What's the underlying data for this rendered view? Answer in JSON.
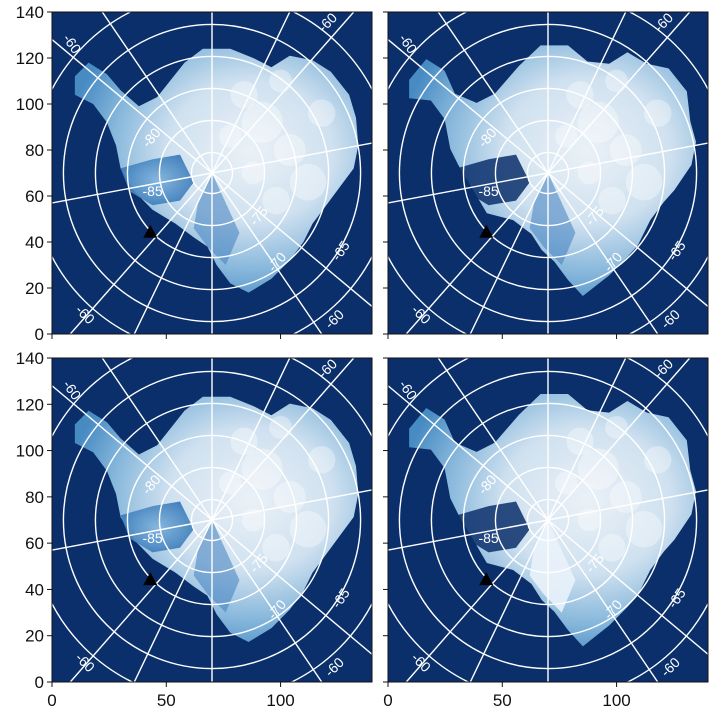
{
  "chart_data": [
    {
      "type": "heatmap",
      "panel": "top-left",
      "xlim": [
        0,
        140
      ],
      "ylim": [
        0,
        140
      ],
      "x_ticks": [
        "0",
        "50",
        "100"
      ],
      "y_ticks": [
        "0",
        "20",
        "40",
        "60",
        "80",
        "100",
        "120",
        "140"
      ],
      "pole": [
        70,
        70
      ],
      "latitude_circles": [
        -60,
        -65,
        -70,
        -75,
        -80,
        -85
      ],
      "grid_labels": [
        "-60",
        "-60",
        "-60",
        "-60",
        "-80",
        "-85",
        "-75",
        "-70",
        "-65"
      ],
      "marker": {
        "shape": "triangle",
        "x": 43,
        "y": 44
      },
      "colors": {
        "ocean": "#0a2f6b",
        "land_low": "#4a8fc7",
        "land_high": "#f2f8fc",
        "grid": "#ffffff",
        "marker": "#000000"
      }
    },
    {
      "type": "heatmap",
      "panel": "top-right",
      "xlim": [
        0,
        140
      ],
      "ylim": [
        0,
        140
      ],
      "x_ticks": [
        "0",
        "50",
        "100"
      ],
      "y_ticks": [],
      "pole": [
        70,
        70
      ],
      "latitude_circles": [
        -60,
        -65,
        -70,
        -75,
        -80,
        -85
      ],
      "grid_labels": [
        "-60",
        "-60",
        "-60",
        "-60",
        "-80",
        "-85",
        "-75",
        "-70",
        "-65"
      ],
      "marker": {
        "shape": "triangle",
        "x": 43,
        "y": 44
      },
      "colors": {
        "ocean": "#0a2f6b",
        "land_low": "#4a8fc7",
        "land_high": "#f2f8fc",
        "grid": "#ffffff",
        "marker": "#000000"
      }
    },
    {
      "type": "heatmap",
      "panel": "bottom-left",
      "xlim": [
        0,
        140
      ],
      "ylim": [
        0,
        140
      ],
      "x_ticks": [
        "0",
        "50",
        "100"
      ],
      "y_ticks": [
        "0",
        "20",
        "40",
        "60",
        "80",
        "100",
        "120",
        "140"
      ],
      "pole": [
        70,
        70
      ],
      "latitude_circles": [
        -60,
        -65,
        -70,
        -75,
        -80,
        -85
      ],
      "grid_labels": [
        "-60",
        "-60",
        "-60",
        "-60",
        "-80",
        "-85",
        "-75",
        "-70",
        "-65"
      ],
      "marker": {
        "shape": "triangle",
        "x": 43,
        "y": 44
      },
      "colors": {
        "ocean": "#0a2f6b",
        "land_low": "#4a8fc7",
        "land_high": "#f2f8fc",
        "grid": "#ffffff",
        "marker": "#000000"
      }
    },
    {
      "type": "heatmap",
      "panel": "bottom-right",
      "xlim": [
        0,
        140
      ],
      "ylim": [
        0,
        140
      ],
      "x_ticks": [
        "0",
        "50",
        "100"
      ],
      "y_ticks": [],
      "pole": [
        70,
        70
      ],
      "latitude_circles": [
        -60,
        -65,
        -70,
        -75,
        -80,
        -85
      ],
      "grid_labels": [
        "-60",
        "-60",
        "-60",
        "-60",
        "-80",
        "-85",
        "-75",
        "-70",
        "-65"
      ],
      "marker": {
        "shape": "triangle",
        "x": 43,
        "y": 44
      },
      "colors": {
        "ocean": "#0a2f6b",
        "land_low": "#4a8fc7",
        "land_high": "#f2f8fc",
        "grid": "#ffffff",
        "marker": "#000000"
      }
    }
  ]
}
